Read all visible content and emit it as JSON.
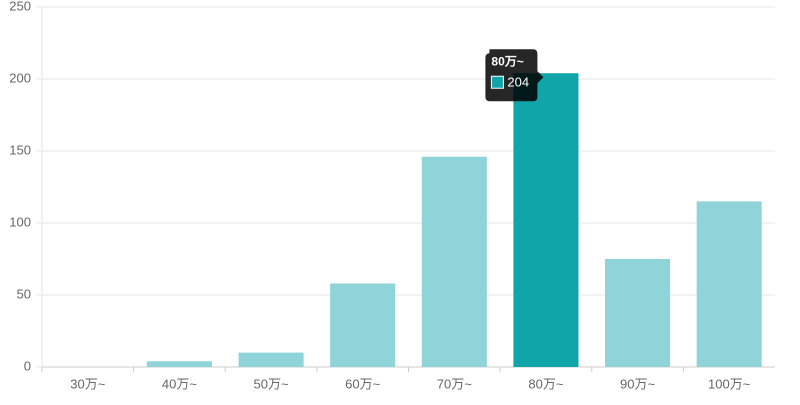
{
  "chart_data": {
    "type": "bar",
    "categories": [
      "30万~",
      "40万~",
      "50万~",
      "60万~",
      "70万~",
      "80万~",
      "90万~",
      "100万~"
    ],
    "values": [
      0,
      4,
      10,
      58,
      146,
      204,
      75,
      115
    ],
    "color": "#8fd4d8",
    "highlight_color": "#10a5a8",
    "ylim": [
      0,
      250
    ],
    "yticks": [
      0,
      50,
      100,
      150,
      200,
      250
    ],
    "grid": true,
    "tooltip_index": 5
  }
}
